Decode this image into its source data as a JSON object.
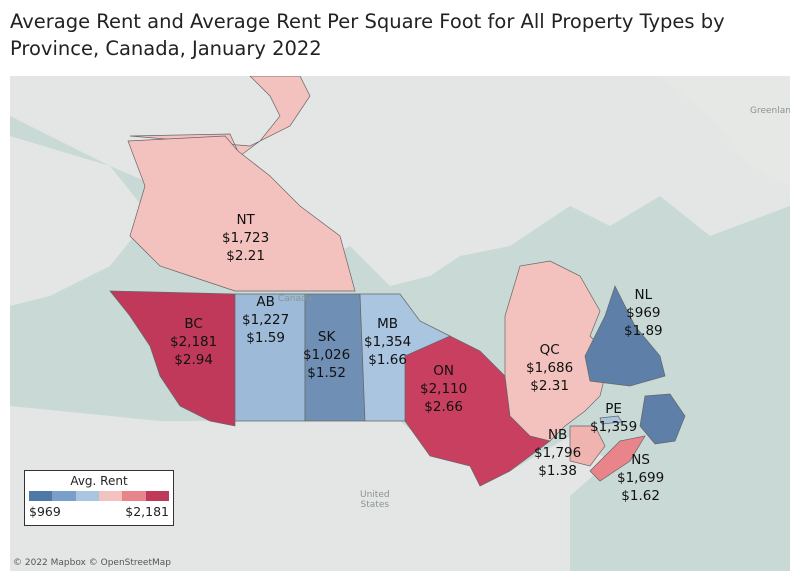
{
  "title": "Average Rent and Average Rent Per Square Foot for All Property Types by Province, Canada, January 2022",
  "map_labels": {
    "canada": "Canada",
    "united_states": "United\nStates",
    "greenland": "Greenlan"
  },
  "attribution": "© 2022 Mapbox © OpenStreetMap",
  "legend": {
    "title": "Avg. Rent",
    "min_label": "$969",
    "max_label": "$2,181",
    "colors": [
      "#4f79a8",
      "#7aa0c9",
      "#a9c5df",
      "#f4c2be",
      "#e9858a",
      "#c1395a"
    ]
  },
  "provinces": [
    {
      "code": "NT",
      "rent": "$1,723",
      "psf": "$2.21",
      "color": "#f4c2be"
    },
    {
      "code": "BC",
      "rent": "$2,181",
      "psf": "$2.94",
      "color": "#c1395a"
    },
    {
      "code": "AB",
      "rent": "$1,227",
      "psf": "$1.59",
      "color": "#9dbbd8"
    },
    {
      "code": "SK",
      "rent": "$1,026",
      "psf": "$1.52",
      "color": "#6f8fb5"
    },
    {
      "code": "MB",
      "rent": "$1,354",
      "psf": "$1.66",
      "color": "#a9c5df"
    },
    {
      "code": "ON",
      "rent": "$2,110",
      "psf": "$2.66",
      "color": "#c83f60"
    },
    {
      "code": "QC",
      "rent": "$1,686",
      "psf": "$2.31",
      "color": "#f4c2be"
    },
    {
      "code": "NL",
      "rent": "$969",
      "psf": "$1.89",
      "color": "#5d7fa8"
    },
    {
      "code": "PE",
      "rent": "$1,359",
      "psf": "",
      "color": "#a9c5df"
    },
    {
      "code": "NB",
      "rent": "$1,796",
      "psf": "$1.38",
      "color": "#f0b4b0"
    },
    {
      "code": "NS",
      "rent": "$1,699",
      "psf": "$1.62",
      "color": "#e9858a"
    },
    {
      "code": "NU",
      "rent": "",
      "psf": "",
      "color": "#f4c2be"
    }
  ]
}
